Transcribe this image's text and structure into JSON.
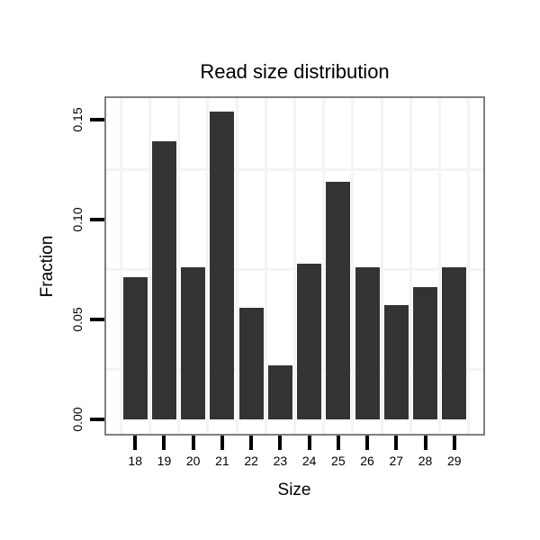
{
  "chart_data": {
    "type": "bar",
    "title": "Read size distribution",
    "xlabel": "Size",
    "ylabel": "Fraction",
    "categories": [
      "18",
      "19",
      "20",
      "21",
      "22",
      "23",
      "24",
      "25",
      "26",
      "27",
      "28",
      "29"
    ],
    "values": [
      0.071,
      0.139,
      0.076,
      0.154,
      0.056,
      0.027,
      0.078,
      0.119,
      0.076,
      0.057,
      0.066,
      0.076
    ],
    "y_tick_values": [
      0,
      0.05,
      0.1,
      0.15
    ],
    "y_tick_labels": [
      "0.00",
      "0.05",
      "0.10",
      "0.15"
    ],
    "ylim": [
      -0.008,
      0.161
    ],
    "minor_gridlines_y": [
      0.025,
      0.075,
      0.125
    ],
    "grid": "faint minor gridlines only",
    "legend_position": "none",
    "series_count": 1
  },
  "colors": {
    "background": "#ffffff",
    "bar_fill": "#333333",
    "panel_border": "#7f7f7f",
    "gridline": "#f4f4f4",
    "tick": "#000000",
    "text": "#000000"
  }
}
